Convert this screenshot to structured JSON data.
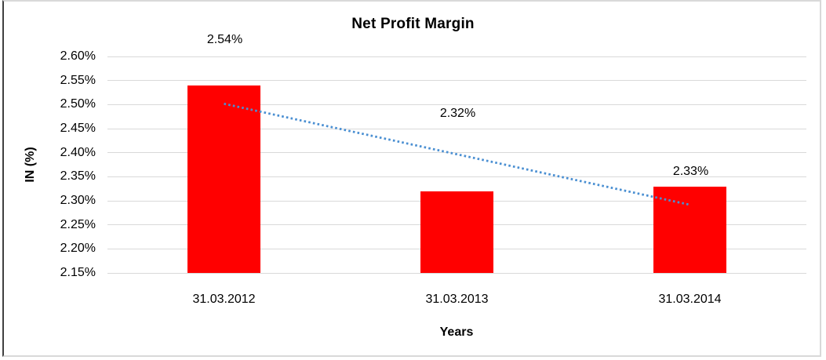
{
  "chart_data": {
    "type": "bar",
    "title": "Net Profit Margin",
    "xlabel": "Years",
    "ylabel": "IN (%)",
    "categories": [
      "31.03.2012",
      "31.03.2013",
      "31.03.2014"
    ],
    "values": [
      2.54,
      2.32,
      2.33
    ],
    "data_labels": [
      "2.54%",
      "2.32%",
      "2.33%"
    ],
    "yticks": [
      "2.60%",
      "2.55%",
      "2.50%",
      "2.45%",
      "2.40%",
      "2.35%",
      "2.30%",
      "2.25%",
      "2.20%",
      "2.15%"
    ],
    "ylim": [
      2.15,
      2.6
    ],
    "ytick_step": 0.05,
    "grid": true,
    "legend": false,
    "bar_color": "#ff0000",
    "gridline_color": "#d9d9d9",
    "border_color": "#d9d9d9",
    "trendline": {
      "style": "dotted",
      "color": "#4a8fd2",
      "start_value": 2.5017,
      "end_value": 2.2917
    }
  }
}
